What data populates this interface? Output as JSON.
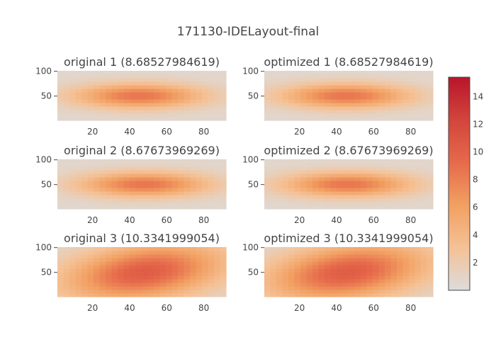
{
  "chart_data": {
    "type": "heatmap",
    "title": "171130-IDELayout-final",
    "colorscale": [
      "#dcdcdc",
      "#f5c195",
      "#f2a062",
      "#e66a4b",
      "#d2453c",
      "#b8152a"
    ],
    "color_range": [
      0,
      15.4
    ],
    "colorbar_ticks": [
      "2",
      "4",
      "6",
      "8",
      "10",
      "12",
      "14"
    ],
    "colorbar_tick_values": [
      2,
      4,
      6,
      8,
      10,
      12,
      14
    ],
    "x_range": [
      1,
      92
    ],
    "y_range": [
      1,
      101
    ],
    "x_ticks": [
      "20",
      "40",
      "60",
      "80"
    ],
    "x_tick_values": [
      20,
      40,
      60,
      80
    ],
    "y_ticks": [
      "50",
      "100"
    ],
    "y_tick_values": [
      50,
      100
    ],
    "grid": false,
    "legend": "colorbar at right",
    "panels": [
      {
        "title": "original 1 (8.68527984619)",
        "peak": 8.68527984619,
        "x_center": 45,
        "y_center": 51,
        "x_spread": 24,
        "y_spread": 17,
        "tilt": 0
      },
      {
        "title": "optimized 1 (8.68527984619)",
        "peak": 8.68527984619,
        "x_center": 45,
        "y_center": 51,
        "x_spread": 24,
        "y_spread": 17,
        "tilt": 0
      },
      {
        "title": "original 2 (8.67673969269)",
        "peak": 8.67673969269,
        "x_center": 48,
        "y_center": 51,
        "x_spread": 24,
        "y_spread": 17,
        "tilt": 0
      },
      {
        "title": "optimized 2 (8.67673969269)",
        "peak": 8.67673969269,
        "x_center": 46,
        "y_center": 51,
        "x_spread": 24,
        "y_spread": 17,
        "tilt": 0
      },
      {
        "title": "original 3 (10.3341999054)",
        "peak": 10.3341999054,
        "x_center": 48,
        "y_center": 51,
        "x_spread": 28,
        "y_spread": 40,
        "tilt": 0.22
      },
      {
        "title": "optimized 3 (10.3341999054)",
        "peak": 10.3341999054,
        "x_center": 46,
        "y_center": 51,
        "x_spread": 28,
        "y_spread": 40,
        "tilt": 0.22
      }
    ]
  }
}
